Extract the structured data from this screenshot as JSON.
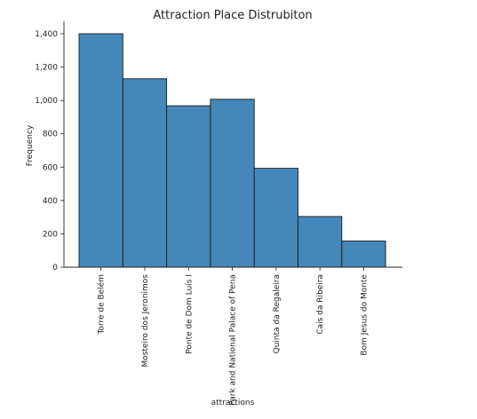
{
  "chart_data": {
    "type": "bar",
    "title": "Attraction Place Distrubiton",
    "xlabel": "attractions",
    "ylabel": "Frequency",
    "categories": [
      "Torre de Belém",
      "Mosteiro dos Jeronimos",
      "Ponte de Dom Luís I",
      "Park and National Palace of Pena",
      "Quinta da Regaleira",
      "Cais da Ribeira",
      "Bom Jesus do Monte"
    ],
    "values": [
      1400,
      1130,
      968,
      1007,
      593,
      304,
      157
    ],
    "ylim": [
      0,
      1400
    ],
    "yticks": [
      0,
      200,
      400,
      600,
      800,
      1000,
      1200,
      1400
    ],
    "ytick_labels": [
      "0",
      "200",
      "400",
      "600",
      "800",
      "1,000",
      "1,200",
      "1,400"
    ],
    "bar_color": "#4587b9",
    "grid": false,
    "legend": "none"
  }
}
